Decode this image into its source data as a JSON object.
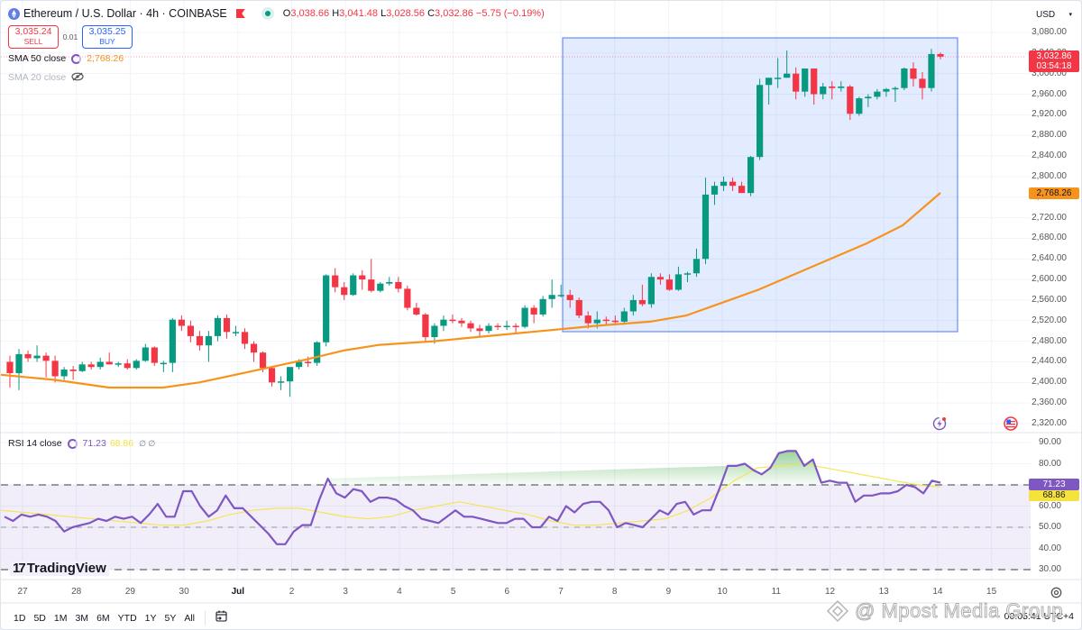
{
  "header": {
    "symbol_title": "Ethereum / U.S. Dollar · 4h · COINBASE",
    "ohlc": {
      "open_label": "O",
      "open": "3,038.66",
      "high_label": "H",
      "high": "3,041.48",
      "low_label": "L",
      "low": "3,028.56",
      "close_label": "C",
      "close": "3,032.86",
      "change": "−5.75 (−0.19%)"
    },
    "sell": {
      "price": "3,035.24",
      "label": "SELL"
    },
    "spread": "0.01",
    "buy": {
      "price": "3,035.25",
      "label": "BUY"
    }
  },
  "indicators": {
    "sma50": {
      "label": "SMA 50 close",
      "value": "2,768.26",
      "color": "#f7931a"
    },
    "sma20": {
      "label": "SMA 20 close",
      "hidden": true
    },
    "rsi": {
      "label": "RSI 14 close",
      "value": "71.23",
      "ma_value": "68.86",
      "extra": "∅ ∅"
    }
  },
  "price_axis": {
    "currency": "USD",
    "ticks": [
      "3,080.00",
      "3,040.00",
      "3,000.00",
      "2,960.00",
      "2,920.00",
      "2,880.00",
      "2,840.00",
      "2,800.00",
      "2,760.00",
      "2,720.00",
      "2,680.00",
      "2,640.00",
      "2,600.00",
      "2,560.00",
      "2,520.00",
      "2,480.00",
      "2,440.00",
      "2,400.00",
      "2,360.00",
      "2,320.00"
    ],
    "last_price_tag": {
      "price": "3,032.86",
      "countdown": "03:54:18",
      "color": "#f23645"
    },
    "sma_tag": {
      "value": "2,768.26",
      "color": "#f7931a"
    }
  },
  "rsi_axis": {
    "ticks": [
      "90.00",
      "80.00",
      "70.00",
      "60.00",
      "50.00",
      "40.00",
      "30.00"
    ],
    "rsi_tag": {
      "value": "71.23",
      "color": "#7e57c2"
    },
    "ma_tag": {
      "value": "68.86",
      "color": "#f5e33c"
    }
  },
  "time_axis": {
    "ticks": [
      "27",
      "28",
      "29",
      "30",
      "Jul",
      "2",
      "3",
      "4",
      "5",
      "6",
      "7",
      "8",
      "9",
      "10",
      "11",
      "12",
      "13",
      "14",
      "15"
    ]
  },
  "range_buttons": [
    "1D",
    "5D",
    "1M",
    "3M",
    "6M",
    "YTD",
    "1Y",
    "5Y",
    "All"
  ],
  "footer": {
    "timezone_clock": "00:05:41 UTC+4"
  },
  "branding": {
    "logo_text": "TradingView",
    "watermark": "@ Mpost Media Group"
  },
  "colors": {
    "up": "#089981",
    "down": "#f23645",
    "sma": "#f7931a",
    "rsi": "#7e57c2",
    "rsi_ma": "#f5e33c",
    "selection": "#2962ff"
  },
  "chart_data": [
    {
      "type": "candlestick",
      "title": "Ethereum / U.S. Dollar · 4h · COINBASE",
      "xlabel": "",
      "ylabel": "USD",
      "ylim": [
        2300,
        3090
      ],
      "x_ticks": [
        "27",
        "28",
        "29",
        "30",
        "Jul",
        "2",
        "3",
        "4",
        "5",
        "6",
        "7",
        "8",
        "9",
        "10",
        "11",
        "12",
        "13",
        "14",
        "15"
      ],
      "candles_ohlc": [
        [
          2440,
          2452,
          2390,
          2418
        ],
        [
          2418,
          2465,
          2385,
          2455
        ],
        [
          2455,
          2462,
          2440,
          2447
        ],
        [
          2447,
          2472,
          2440,
          2452
        ],
        [
          2452,
          2458,
          2410,
          2442
        ],
        [
          2442,
          2452,
          2400,
          2412
        ],
        [
          2412,
          2430,
          2405,
          2425
        ],
        [
          2425,
          2432,
          2405,
          2422
        ],
        [
          2422,
          2440,
          2420,
          2435
        ],
        [
          2435,
          2440,
          2425,
          2430
        ],
        [
          2430,
          2448,
          2425,
          2440
        ],
        [
          2440,
          2458,
          2435,
          2435
        ],
        [
          2435,
          2440,
          2430,
          2437
        ],
        [
          2437,
          2445,
          2425,
          2428
        ],
        [
          2428,
          2445,
          2425,
          2442
        ],
        [
          2442,
          2475,
          2440,
          2468
        ],
        [
          2468,
          2470,
          2432,
          2438
        ],
        [
          2438,
          2442,
          2420,
          2438
        ],
        [
          2438,
          2525,
          2420,
          2522
        ],
        [
          2522,
          2530,
          2500,
          2510
        ],
        [
          2510,
          2520,
          2478,
          2490
        ],
        [
          2490,
          2500,
          2462,
          2472
        ],
        [
          2472,
          2500,
          2440,
          2490
        ],
        [
          2490,
          2530,
          2480,
          2525
        ],
        [
          2525,
          2532,
          2485,
          2498
        ],
        [
          2498,
          2510,
          2490,
          2498
        ],
        [
          2498,
          2505,
          2465,
          2475
        ],
        [
          2475,
          2480,
          2440,
          2458
        ],
        [
          2458,
          2460,
          2420,
          2428
        ],
        [
          2428,
          2432,
          2392,
          2400
        ],
        [
          2400,
          2412,
          2385,
          2402
        ],
        [
          2402,
          2420,
          2372,
          2430
        ],
        [
          2430,
          2445,
          2425,
          2440
        ],
        [
          2440,
          2450,
          2430,
          2438
        ],
        [
          2438,
          2480,
          2432,
          2478
        ],
        [
          2478,
          2610,
          2470,
          2608
        ],
        [
          2608,
          2622,
          2575,
          2585
        ],
        [
          2585,
          2595,
          2560,
          2570
        ],
        [
          2570,
          2612,
          2568,
          2608
        ],
        [
          2608,
          2618,
          2580,
          2600
        ],
        [
          2600,
          2640,
          2575,
          2578
        ],
        [
          2578,
          2595,
          2575,
          2592
        ],
        [
          2592,
          2605,
          2588,
          2595
        ],
        [
          2595,
          2605,
          2575,
          2582
        ],
        [
          2582,
          2588,
          2540,
          2545
        ],
        [
          2545,
          2555,
          2530,
          2532
        ],
        [
          2532,
          2535,
          2478,
          2488
        ],
        [
          2488,
          2515,
          2475,
          2510
        ],
        [
          2510,
          2530,
          2500,
          2522
        ],
        [
          2522,
          2532,
          2515,
          2520
        ],
        [
          2520,
          2525,
          2508,
          2515
        ],
        [
          2515,
          2520,
          2498,
          2505
        ],
        [
          2505,
          2512,
          2488,
          2500
        ],
        [
          2500,
          2515,
          2495,
          2510
        ],
        [
          2510,
          2515,
          2502,
          2508
        ],
        [
          2508,
          2520,
          2502,
          2510
        ],
        [
          2510,
          2515,
          2495,
          2508
        ],
        [
          2508,
          2550,
          2505,
          2545
        ],
        [
          2545,
          2550,
          2515,
          2532
        ],
        [
          2532,
          2568,
          2528,
          2562
        ],
        [
          2562,
          2600,
          2545,
          2570
        ],
        [
          2570,
          2590,
          2565,
          2570
        ],
        [
          2570,
          2580,
          2545,
          2560
        ],
        [
          2560,
          2565,
          2525,
          2530
        ],
        [
          2530,
          2538,
          2505,
          2515
        ],
        [
          2515,
          2538,
          2505,
          2522
        ],
        [
          2522,
          2528,
          2512,
          2520
        ],
        [
          2520,
          2530,
          2515,
          2518
        ],
        [
          2518,
          2545,
          2512,
          2538
        ],
        [
          2538,
          2570,
          2530,
          2560
        ],
        [
          2560,
          2590,
          2548,
          2552
        ],
        [
          2552,
          2612,
          2545,
          2605
        ],
        [
          2605,
          2612,
          2590,
          2600
        ],
        [
          2600,
          2610,
          2578,
          2580
        ],
        [
          2580,
          2625,
          2578,
          2610
        ],
        [
          2610,
          2615,
          2595,
          2612
        ],
        [
          2612,
          2660,
          2605,
          2640
        ],
        [
          2640,
          2798,
          2630,
          2765
        ],
        [
          2765,
          2790,
          2745,
          2782
        ],
        [
          2782,
          2800,
          2772,
          2790
        ],
        [
          2790,
          2798,
          2772,
          2782
        ],
        [
          2782,
          2790,
          2768,
          2768
        ],
        [
          2768,
          2840,
          2762,
          2838
        ],
        [
          2838,
          2990,
          2832,
          2978
        ],
        [
          2978,
          2990,
          2940,
          2992
        ],
        [
          2992,
          3030,
          2972,
          2992
        ],
        [
          2992,
          3045,
          2992,
          3000
        ],
        [
          3000,
          3012,
          2950,
          2965
        ],
        [
          2965,
          3010,
          2955,
          3010
        ],
        [
          3010,
          3010,
          2940,
          2960
        ],
        [
          2960,
          2982,
          2950,
          2975
        ],
        [
          2975,
          2985,
          2950,
          2972
        ],
        [
          2972,
          2985,
          2965,
          2975
        ],
        [
          2975,
          2978,
          2910,
          2922
        ],
        [
          2922,
          2955,
          2918,
          2952
        ],
        [
          2952,
          2960,
          2935,
          2955
        ],
        [
          2955,
          2970,
          2950,
          2965
        ],
        [
          2965,
          2972,
          2955,
          2970
        ],
        [
          2970,
          2975,
          2945,
          2972
        ],
        [
          2972,
          3012,
          2968,
          3010
        ],
        [
          3010,
          3022,
          2975,
          2990
        ],
        [
          2990,
          3003,
          2950,
          2972
        ],
        [
          2972,
          3048,
          2965,
          3038
        ],
        [
          3038,
          3041,
          3028,
          3033
        ]
      ],
      "sma50_line": {
        "start": 2415,
        "low_around_Jun29": 2385,
        "at_Jul7": 2502,
        "end": 2768.26
      },
      "annotation_rectangle": {
        "from": "Jul 7",
        "to": "Jul 14",
        "price_range": [
          2500,
          3068
        ],
        "color": "#2962ff"
      },
      "last_price": 3032.86
    },
    {
      "type": "line",
      "title": "RSI 14 close",
      "ylim": [
        30,
        90
      ],
      "bands": {
        "upper": 70,
        "middle": 50,
        "lower": 30
      },
      "series": [
        {
          "name": "RSI",
          "values": [
            55,
            53,
            56,
            55,
            56,
            55,
            53,
            48,
            50,
            51,
            52,
            54,
            53,
            55,
            54,
            55,
            52,
            56,
            61,
            55,
            55,
            67,
            67,
            60,
            55,
            58,
            65,
            59,
            59,
            55,
            51,
            47,
            42,
            42,
            48,
            51,
            51,
            63,
            73,
            66,
            64,
            68,
            67,
            62,
            64,
            64,
            63,
            60,
            58,
            54,
            53,
            52,
            55,
            58,
            55,
            55,
            54,
            53,
            52,
            52,
            54,
            54,
            50,
            50,
            55,
            53,
            60,
            57,
            61,
            62,
            62,
            58,
            50,
            52,
            51,
            50,
            54,
            58,
            56,
            61,
            62,
            56,
            58,
            58,
            68,
            79,
            79,
            80,
            77,
            75,
            78,
            85,
            86,
            86,
            79,
            82,
            71,
            72,
            71,
            71,
            62,
            65,
            65,
            66,
            66,
            67,
            70,
            69,
            66,
            72,
            71
          ]
        },
        {
          "name": "RSI-based MA",
          "values": [
            58,
            57,
            56,
            55,
            54,
            53,
            52,
            51,
            51,
            53,
            56,
            58,
            59,
            59,
            57,
            55,
            54,
            55,
            58,
            60,
            62,
            60,
            58,
            56,
            53,
            51,
            51,
            52,
            53,
            54,
            58,
            64,
            72,
            78,
            79,
            80,
            78,
            76,
            74,
            72,
            70,
            69
          ]
        }
      ],
      "current": {
        "rsi": 71.23,
        "ma": 68.86
      }
    }
  ]
}
